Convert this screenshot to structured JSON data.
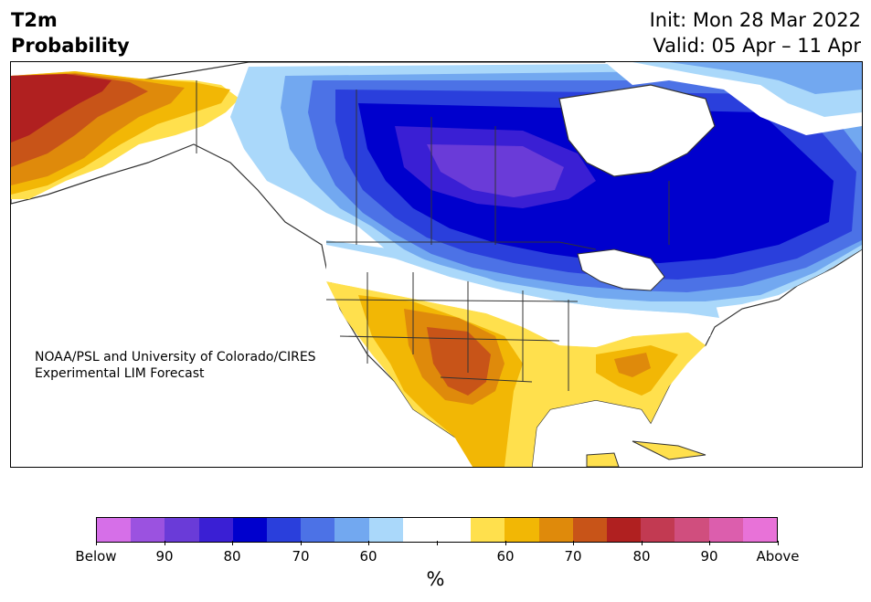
{
  "title": {
    "line1": "T2m",
    "line2": "Probability"
  },
  "init_label": "Init: Mon 28 Mar 2022",
  "valid_label": "Valid: 05 Apr – 11 Apr",
  "credit": {
    "line1": "NOAA/PSL and University of Colorado/CIRES",
    "line2": "Experimental LIM Forecast"
  },
  "colorbar": {
    "colors": [
      "#d66fe8",
      "#9b52e0",
      "#6a3bd8",
      "#3a1fd4",
      "#0000cd",
      "#2a3fdc",
      "#4c72e6",
      "#72a8f0",
      "#aad8fa",
      "#ffffff",
      "#ffffff",
      "#ffe04d",
      "#f2b705",
      "#df8a0b",
      "#c85418",
      "#b02020",
      "#c23a52",
      "#d04e7e",
      "#dc5ead",
      "#e872d8"
    ],
    "tick_labels": [
      "Below",
      "90",
      "80",
      "70",
      "60",
      "",
      "60",
      "70",
      "80",
      "90",
      "Above"
    ],
    "unit": "%"
  },
  "legend_meaning": {
    "below": "Below",
    "above": "Above"
  }
}
